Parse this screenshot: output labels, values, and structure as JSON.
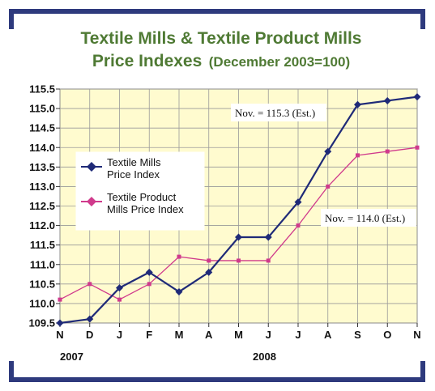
{
  "chart_data": {
    "type": "line",
    "title_line1": "Textile Mills & Textile Product Mills",
    "title_line2_main": "Price Indexes",
    "title_line2_sub": "(December 2003=100)",
    "categories": [
      "N",
      "D",
      "J",
      "F",
      "M",
      "A",
      "M",
      "J",
      "J",
      "A",
      "S",
      "O",
      "N"
    ],
    "years": [
      "2007",
      "2008"
    ],
    "ylim": [
      109.5,
      115.5
    ],
    "yticks": [
      "109.5",
      "110.0",
      "110.5",
      "111.0",
      "111.5",
      "112.0",
      "112.5",
      "113.0",
      "113.5",
      "114.0",
      "114.5",
      "115.0",
      "115.5"
    ],
    "grid": true,
    "legend_position": "left",
    "series": [
      {
        "name_line1": "Textile Mills",
        "name_line2": "Price Index",
        "color": "#1f2a78",
        "values": [
          109.5,
          109.6,
          110.4,
          110.8,
          110.3,
          110.8,
          111.7,
          111.7,
          112.6,
          113.9,
          115.1,
          115.2,
          115.3
        ]
      },
      {
        "name_line1": "Textile Product",
        "name_line2": "Mills Price Index",
        "color": "#d03a8c",
        "values": [
          110.1,
          110.5,
          110.1,
          110.5,
          111.2,
          111.1,
          111.1,
          111.1,
          112.0,
          113.0,
          113.8,
          113.9,
          114.0
        ]
      }
    ],
    "annotations": [
      "Nov. = 115.3 (Est.)",
      "Nov. = 114.0 (Est.)"
    ]
  },
  "colors": {
    "frame": "#2e3a7d",
    "plot_bg": "#fffbcf",
    "title": "#4f7a34"
  }
}
